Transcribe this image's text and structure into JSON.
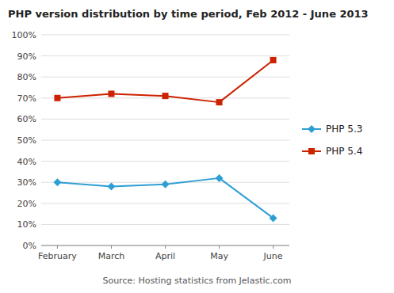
{
  "chart_data": {
    "type": "line",
    "title": "PHP version distribution by time period, Feb 2012 - June 2013",
    "categories": [
      "February",
      "March",
      "April",
      "May",
      "June"
    ],
    "series": [
      {
        "name": "PHP 5.3",
        "color": "#2e9fd4",
        "marker": "diamond",
        "values": [
          30,
          28,
          29,
          32,
          13
        ]
      },
      {
        "name": "PHP 5.4",
        "color": "#cc2200",
        "marker": "square",
        "values": [
          70,
          72,
          71,
          68,
          88
        ]
      }
    ],
    "ylim": [
      0,
      100
    ],
    "yticks": [
      {
        "value": 0,
        "label": "0%"
      },
      {
        "value": 10,
        "label": "10%"
      },
      {
        "value": 20,
        "label": "20%"
      },
      {
        "value": 30,
        "label": "30%"
      },
      {
        "value": 40,
        "label": "40%"
      },
      {
        "value": 50,
        "label": "50%"
      },
      {
        "value": 60,
        "label": "60%"
      },
      {
        "value": 70,
        "label": "70%"
      },
      {
        "value": 80,
        "label": "80%"
      },
      {
        "value": 90,
        "label": "90%"
      },
      {
        "value": 100,
        "label": "100%"
      }
    ],
    "grid": true,
    "legend": "right",
    "annotations": [
      "Source: Hosting statistics from Jelastic.com"
    ]
  }
}
